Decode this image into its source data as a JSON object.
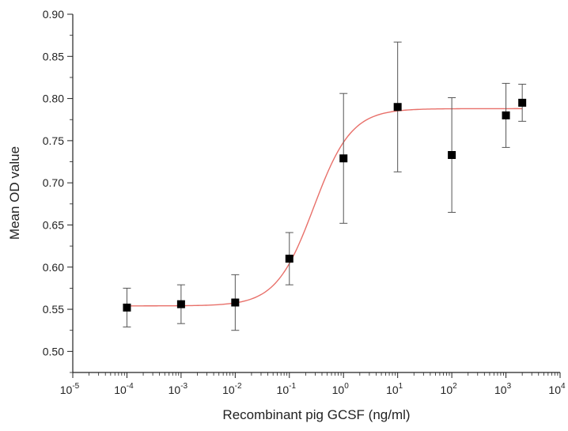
{
  "chart_data": {
    "type": "scatter",
    "xlabel": "Recombinant pig GCSF (ng/ml)",
    "ylabel": "Mean OD value",
    "x_scale": "log",
    "x_tick_exponents": [
      -5,
      -4,
      -3,
      -2,
      -1,
      0,
      1,
      2,
      3,
      4
    ],
    "x_tick_base": "10",
    "xlim": [
      1e-05,
      10000
    ],
    "ylim": [
      0.475,
      0.9
    ],
    "y_ticks": [
      "0.50",
      "0.55",
      "0.60",
      "0.65",
      "0.70",
      "0.75",
      "0.80",
      "0.85",
      "0.90"
    ],
    "grid": false,
    "series": [
      {
        "x": [
          0.0001,
          0.001,
          0.01,
          0.1,
          1,
          10,
          100,
          1000,
          2000
        ],
        "y": [
          0.552,
          0.556,
          0.558,
          0.61,
          0.729,
          0.79,
          0.733,
          0.78,
          0.795
        ],
        "err": [
          0.023,
          0.023,
          0.033,
          0.031,
          0.077,
          0.077,
          0.068,
          0.038,
          0.022
        ],
        "color": "#000000",
        "marker": "square"
      }
    ],
    "fit": {
      "type": "logistic",
      "color": "#e8706a",
      "bottom": 0.554,
      "top": 0.788,
      "log_ec50": -0.55,
      "hill": 1.25
    }
  }
}
